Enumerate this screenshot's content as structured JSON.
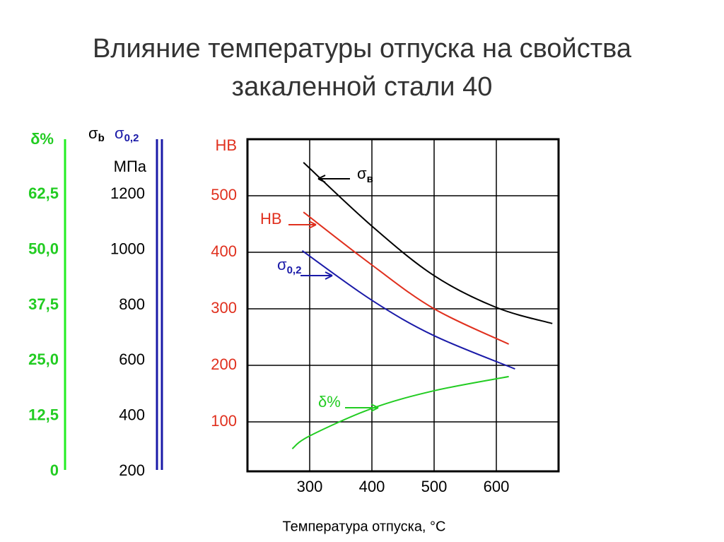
{
  "chart_data": {
    "type": "line",
    "title": "Влияние температуры отпуска на свойства закаленной стали 40",
    "x_label": "Температура отпуска, °C",
    "xlim": [
      200,
      700
    ],
    "xticks": [
      300,
      400,
      500,
      600
    ],
    "y_label": "HB",
    "y_color": "#e0301e",
    "ylim": [
      12.5,
      600
    ],
    "yticks": [
      100,
      200,
      300,
      400,
      500
    ],
    "grid": true,
    "y2_label": [
      {
        "text": "σ",
        "sub": "b",
        "color": "#000000"
      },
      {
        "text": "σ",
        "sub": "0,2",
        "color": "#1a1aa8"
      }
    ],
    "y2_unit": "МПа",
    "y2lim": [
      200,
      1400
    ],
    "y2ticks": [
      200,
      400,
      600,
      800,
      1000,
      1200
    ],
    "y3_label": "δ%",
    "y3_color": "#22cc22",
    "y3lim": [
      0,
      75
    ],
    "y3ticks": [
      0,
      {
        "value": 12.5,
        "label": "12,5"
      },
      {
        "value": 25,
        "label": "25,0"
      },
      {
        "value": 37.5,
        "label": "37,5"
      },
      {
        "value": 50,
        "label": "50,0"
      },
      {
        "value": 62.5,
        "label": "62,5"
      }
    ],
    "series": [
      {
        "name": "σ",
        "sub": "в",
        "color": "#000000",
        "axis": "y2",
        "x": [
          290,
          400,
          500,
          600,
          690
        ],
        "values": [
          1316,
          1086,
          907,
          792,
          734
        ]
      },
      {
        "name": "HB",
        "color": "#e0301e",
        "axis": "y",
        "x": [
          290,
          400,
          500,
          620
        ],
        "values": [
          471,
          377.5,
          300,
          237.5
        ]
      },
      {
        "name": "σ",
        "sub": "0,2",
        "color": "#1a1aa8",
        "axis": "y2",
        "x": [
          288,
          400,
          500,
          630
        ],
        "values": [
          997,
          818,
          690,
          570
        ]
      },
      {
        "name": "δ%",
        "color": "#22cc22",
        "axis": "y3",
        "x": [
          272,
          300,
          400,
          500,
          620
        ],
        "values": [
          5.1,
          8.0,
          14.2,
          18.2,
          21.4
        ]
      }
    ]
  }
}
